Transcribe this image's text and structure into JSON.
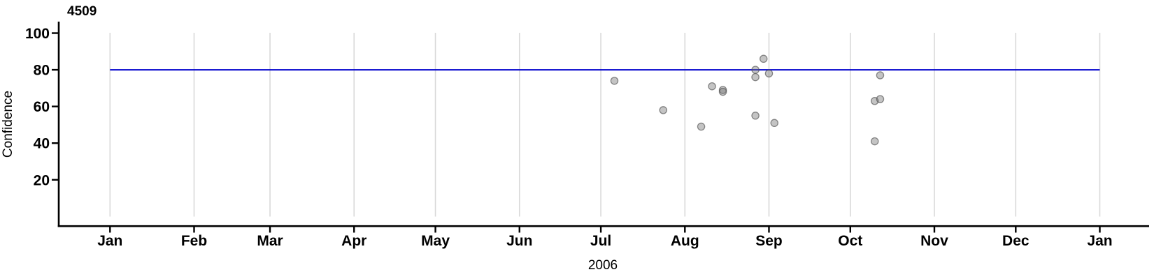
{
  "chart_data": {
    "type": "scatter",
    "title": "4509",
    "xlabel": "2006",
    "ylabel": "Confidence",
    "x_axis": {
      "tick_labels": [
        "Jan",
        "Feb",
        "Mar",
        "Apr",
        "May",
        "Jun",
        "Jul",
        "Aug",
        "Sep",
        "Oct",
        "Nov",
        "Dec",
        "Jan"
      ],
      "tick_day_offsets": [
        0,
        31,
        59,
        90,
        120,
        151,
        181,
        212,
        243,
        273,
        304,
        334,
        365
      ],
      "range_days": [
        0,
        365
      ]
    },
    "y_axis": {
      "ticks": [
        20,
        40,
        60,
        80,
        100
      ],
      "range": [
        0,
        100
      ]
    },
    "grid": "vertical-monthly-only",
    "legend": "none",
    "reference_line": {
      "value": 80,
      "span_days": [
        0,
        365
      ]
    },
    "points": [
      {
        "date": "Jul 6",
        "day": 186,
        "value": 74
      },
      {
        "date": "Jul 24",
        "day": 204,
        "value": 58
      },
      {
        "date": "Aug 7",
        "day": 218,
        "value": 49
      },
      {
        "date": "Aug 11",
        "day": 222,
        "value": 71
      },
      {
        "date": "Aug 15",
        "day": 226,
        "value": 69
      },
      {
        "date": "Aug 15",
        "day": 226,
        "value": 68
      },
      {
        "date": "Aug 27",
        "day": 238,
        "value": 55
      },
      {
        "date": "Aug 27",
        "day": 238,
        "value": 76
      },
      {
        "date": "Aug 27",
        "day": 238,
        "value": 80
      },
      {
        "date": "Aug 30",
        "day": 241,
        "value": 86
      },
      {
        "date": "Sep 1",
        "day": 243,
        "value": 78
      },
      {
        "date": "Sep 3",
        "day": 245,
        "value": 51
      },
      {
        "date": "Oct 10",
        "day": 282,
        "value": 63
      },
      {
        "date": "Oct 10",
        "day": 282,
        "value": 41
      },
      {
        "date": "Oct 12",
        "day": 284,
        "value": 64
      },
      {
        "date": "Oct 12",
        "day": 284,
        "value": 77
      }
    ],
    "colors": {
      "reference_line": "#0000CD",
      "gridline": "#D9D9D9",
      "axis": "#000000",
      "point_fill": "rgba(115,115,115,0.42)",
      "point_stroke": "rgba(80,80,80,0.65)",
      "text": "#000000"
    }
  }
}
